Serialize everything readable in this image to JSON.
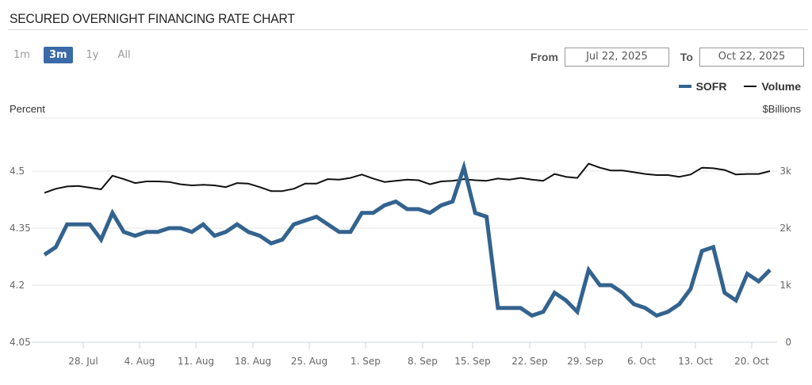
{
  "header": {
    "title": "SECURED OVERNIGHT FINANCING RATE CHART"
  },
  "range_buttons": [
    {
      "label": "1m",
      "active": false
    },
    {
      "label": "3m",
      "active": true
    },
    {
      "label": "1y",
      "active": false
    },
    {
      "label": "All",
      "active": false
    }
  ],
  "date_range": {
    "from_label": "From",
    "from_value": "Jul 22, 2025",
    "to_label": "To",
    "to_value": "Oct 22, 2025"
  },
  "legend": [
    {
      "label": "SOFR",
      "color": "#33638f"
    },
    {
      "label": "Volume",
      "color": "#111111"
    }
  ],
  "axes": {
    "left_title": "Percent",
    "right_title": "$Billions"
  },
  "chart_data": {
    "type": "line",
    "title": "SECURED OVERNIGHT FINANCING RATE CHART",
    "xlabel": "",
    "ylabel": "Percent",
    "y2label": "$Billions",
    "ylim": [
      4.05,
      4.65
    ],
    "y2lim": [
      0,
      4000
    ],
    "y_ticks": [
      "4.05",
      "4.2",
      "4.35",
      "4.5"
    ],
    "y2_ticks": [
      "0",
      "1k",
      "2k",
      "3k"
    ],
    "x_tick_labels": [
      "28. Jul",
      "4. Aug",
      "11. Aug",
      "18. Aug",
      "25. Aug",
      "1. Sep",
      "8. Sep",
      "15. Sep",
      "22. Sep",
      "29. Sep",
      "6. Oct",
      "13. Oct",
      "20. Oct"
    ],
    "grid": true,
    "legend_position": "top-right",
    "series": [
      {
        "name": "SOFR",
        "axis": "left",
        "color": "#33638f",
        "values": [
          4.28,
          4.3,
          4.36,
          4.36,
          4.36,
          4.32,
          4.39,
          4.34,
          4.33,
          4.34,
          4.34,
          4.35,
          4.35,
          4.34,
          4.36,
          4.33,
          4.34,
          4.36,
          4.34,
          4.33,
          4.31,
          4.32,
          4.36,
          4.37,
          4.38,
          4.36,
          4.34,
          4.34,
          4.39,
          4.39,
          4.41,
          4.42,
          4.4,
          4.4,
          4.39,
          4.41,
          4.42,
          4.51,
          4.39,
          4.38,
          4.14,
          4.14,
          4.14,
          4.12,
          4.13,
          4.18,
          4.16,
          4.13,
          4.24,
          4.2,
          4.2,
          4.18,
          4.15,
          4.14,
          4.12,
          4.13,
          4.15,
          4.19,
          4.29,
          4.3,
          4.18,
          4.16,
          4.23,
          4.21,
          4.24
        ]
      },
      {
        "name": "Volume",
        "axis": "right",
        "values": [
          2620,
          2690,
          2730,
          2740,
          2710,
          2680,
          2920,
          2860,
          2790,
          2820,
          2820,
          2810,
          2770,
          2750,
          2760,
          2750,
          2720,
          2790,
          2780,
          2720,
          2650,
          2650,
          2690,
          2780,
          2780,
          2860,
          2850,
          2880,
          2940,
          2870,
          2810,
          2830,
          2850,
          2840,
          2770,
          2820,
          2830,
          2860,
          2840,
          2830,
          2870,
          2850,
          2880,
          2850,
          2830,
          2950,
          2900,
          2880,
          3130,
          3060,
          3010,
          3010,
          2980,
          2950,
          2930,
          2930,
          2900,
          2940,
          3060,
          3050,
          3020,
          2940,
          2950,
          2950,
          3000
        ]
      }
    ]
  }
}
